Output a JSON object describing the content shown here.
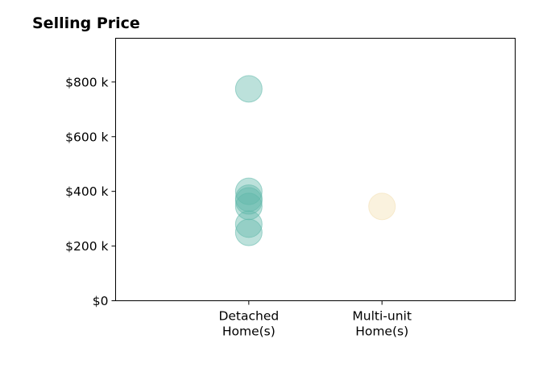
{
  "chart_data": {
    "type": "scatter",
    "title": "Selling Price",
    "xlabel": "",
    "ylabel": "",
    "categories": [
      "Detached Home(s)",
      "Multi-unit Home(s)"
    ],
    "category_lines": [
      [
        "Detached",
        "Home(s)"
      ],
      [
        "Multi-unit",
        "Home(s)"
      ]
    ],
    "ylim": [
      0,
      960
    ],
    "y_ticks": [
      0,
      200,
      400,
      600,
      800
    ],
    "y_tick_labels": [
      "$0",
      "$200 k",
      "$400 k",
      "$600 k",
      "$800 k"
    ],
    "grid": false,
    "legend": "none",
    "series": [
      {
        "category": "Detached Home(s)",
        "color": "#5fb8aa",
        "values": [
          775,
          400,
          375,
          365,
          345,
          280,
          250
        ]
      },
      {
        "category": "Multi-unit Home(s)",
        "color": "#f3dfb0",
        "values": [
          345
        ]
      }
    ]
  }
}
